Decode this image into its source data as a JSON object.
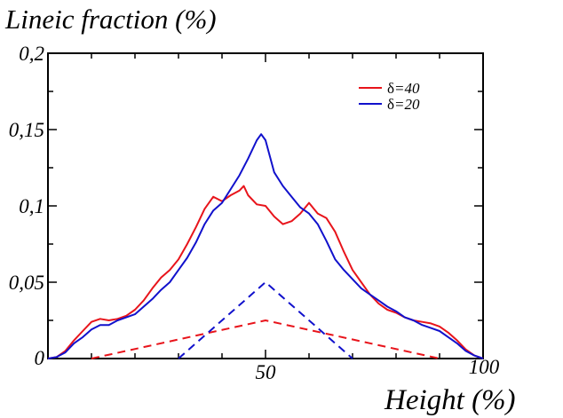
{
  "chart_data": {
    "type": "line",
    "ylabel": "Lineic fraction (%)",
    "xlabel": "Height (%)",
    "xlim": [
      0,
      100
    ],
    "ylim": [
      0,
      0.2
    ],
    "x_ticks": [
      "50",
      "100"
    ],
    "y_ticks": [
      "0",
      "0,05",
      "0,1",
      "0,15",
      "0,2"
    ],
    "legend_position": "top-right",
    "series": [
      {
        "name": "δ=40",
        "legend_symbol": "δ",
        "legend_text": "=40",
        "color": "#e8141b",
        "style": "solid",
        "x": [
          0,
          2,
          4,
          6,
          8,
          10,
          12,
          14,
          16,
          18,
          20,
          22,
          24,
          26,
          28,
          30,
          32,
          34,
          36,
          38,
          40,
          42,
          44,
          45,
          46,
          48,
          50,
          52,
          54,
          56,
          58,
          60,
          62,
          64,
          66,
          68,
          70,
          72,
          74,
          76,
          78,
          80,
          82,
          84,
          86,
          88,
          90,
          92,
          94,
          96,
          98,
          100
        ],
        "y": [
          0,
          0.001,
          0.005,
          0.012,
          0.018,
          0.024,
          0.026,
          0.025,
          0.026,
          0.028,
          0.032,
          0.038,
          0.046,
          0.053,
          0.058,
          0.065,
          0.075,
          0.086,
          0.098,
          0.106,
          0.103,
          0.107,
          0.11,
          0.113,
          0.107,
          0.101,
          0.1,
          0.093,
          0.088,
          0.09,
          0.095,
          0.102,
          0.095,
          0.092,
          0.083,
          0.07,
          0.058,
          0.05,
          0.042,
          0.036,
          0.032,
          0.03,
          0.027,
          0.025,
          0.024,
          0.023,
          0.021,
          0.017,
          0.012,
          0.006,
          0.002,
          0
        ]
      },
      {
        "name": "δ=20",
        "legend_symbol": "δ",
        "legend_text": "=20",
        "color": "#1111cc",
        "style": "solid",
        "x": [
          0,
          2,
          4,
          6,
          8,
          10,
          12,
          14,
          16,
          18,
          20,
          22,
          24,
          26,
          28,
          30,
          32,
          34,
          36,
          38,
          40,
          42,
          44,
          46,
          48,
          49,
          50,
          52,
          54,
          56,
          58,
          60,
          62,
          64,
          66,
          68,
          70,
          72,
          74,
          76,
          78,
          80,
          82,
          84,
          86,
          88,
          90,
          92,
          94,
          96,
          98,
          100
        ],
        "y": [
          0,
          0.001,
          0.004,
          0.01,
          0.014,
          0.019,
          0.022,
          0.022,
          0.025,
          0.027,
          0.029,
          0.034,
          0.039,
          0.045,
          0.05,
          0.058,
          0.066,
          0.076,
          0.088,
          0.097,
          0.102,
          0.111,
          0.12,
          0.131,
          0.143,
          0.147,
          0.143,
          0.122,
          0.113,
          0.106,
          0.099,
          0.095,
          0.088,
          0.077,
          0.065,
          0.058,
          0.052,
          0.046,
          0.042,
          0.038,
          0.034,
          0.031,
          0.027,
          0.025,
          0.022,
          0.02,
          0.018,
          0.014,
          0.01,
          0.005,
          0.002,
          0
        ]
      },
      {
        "name": "",
        "color": "#e8141b",
        "style": "dashed",
        "x": [
          10,
          50,
          90
        ],
        "y": [
          0,
          0.025,
          0
        ]
      },
      {
        "name": "",
        "color": "#1111cc",
        "style": "dashed",
        "x": [
          30,
          50,
          70
        ],
        "y": [
          0,
          0.05,
          0
        ]
      }
    ]
  }
}
